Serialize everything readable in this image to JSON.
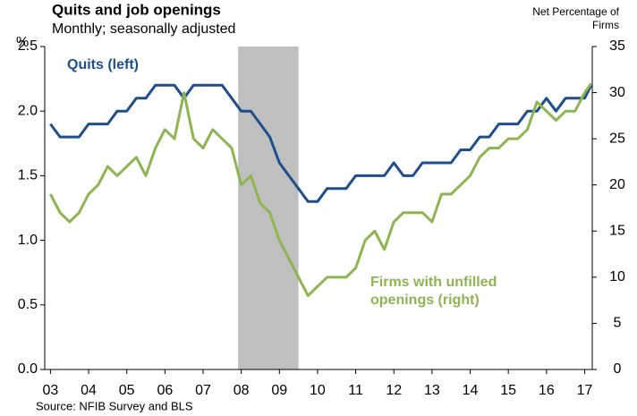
{
  "chart_data": {
    "type": "line",
    "title": "Quits and job openings",
    "subtitle": "Monthly; seasonally adjusted",
    "y_label": "%",
    "y2_label": "Net Percentage of Firms",
    "source": "Source: NFIB Survey and BLS",
    "recession_shading": [
      2007.92,
      2009.5
    ],
    "shading_color": "#bfbfbf",
    "x": [
      2003.0,
      2003.25,
      2003.5,
      2003.75,
      2004.0,
      2004.25,
      2004.5,
      2004.75,
      2005.0,
      2005.25,
      2005.5,
      2005.75,
      2006.0,
      2006.25,
      2006.5,
      2006.75,
      2007.0,
      2007.25,
      2007.5,
      2007.75,
      2008.0,
      2008.25,
      2008.5,
      2008.75,
      2009.0,
      2009.25,
      2009.5,
      2009.75,
      2010.0,
      2010.25,
      2010.5,
      2010.75,
      2011.0,
      2011.25,
      2011.5,
      2011.75,
      2012.0,
      2012.25,
      2012.5,
      2012.75,
      2013.0,
      2013.25,
      2013.5,
      2013.75,
      2014.0,
      2014.25,
      2014.5,
      2014.75,
      2015.0,
      2015.25,
      2015.5,
      2015.75,
      2016.0,
      2016.25,
      2016.5,
      2016.75,
      2017.0,
      2017.17
    ],
    "series": [
      {
        "name": "Quits (left)",
        "color": "#1f4e8c",
        "axis": "y",
        "values": [
          1.9,
          1.8,
          1.8,
          1.8,
          1.9,
          1.9,
          1.9,
          2.0,
          2.0,
          2.1,
          2.1,
          2.2,
          2.2,
          2.2,
          2.1,
          2.2,
          2.2,
          2.2,
          2.2,
          2.1,
          2.0,
          2.0,
          1.9,
          1.8,
          1.6,
          1.5,
          1.4,
          1.3,
          1.3,
          1.4,
          1.4,
          1.4,
          1.5,
          1.5,
          1.5,
          1.5,
          1.6,
          1.5,
          1.5,
          1.6,
          1.6,
          1.6,
          1.6,
          1.7,
          1.7,
          1.8,
          1.8,
          1.9,
          1.9,
          1.9,
          2.0,
          2.0,
          2.1,
          2.0,
          2.1,
          2.1,
          2.1,
          2.2
        ]
      },
      {
        "name": "Firms with unfilled openings (right)",
        "color": "#8db652",
        "axis": "y2",
        "values": [
          19,
          17,
          16,
          17,
          19,
          20,
          22,
          21,
          22,
          23,
          21,
          24,
          26,
          25,
          30,
          25,
          24,
          26,
          25,
          24,
          20,
          21,
          18,
          17,
          14,
          12,
          10,
          8,
          9,
          10,
          10,
          10,
          11,
          14,
          15,
          13,
          16,
          17,
          17,
          17,
          16,
          19,
          19,
          20,
          21,
          23,
          24,
          24,
          25,
          25,
          26,
          29,
          28,
          27,
          28,
          28,
          30,
          31
        ]
      }
    ],
    "xlim": [
      2002.85,
      2017.2
    ],
    "xticks": [
      {
        "value": 2003,
        "label": "03"
      },
      {
        "value": 2004,
        "label": "04"
      },
      {
        "value": 2005,
        "label": "05"
      },
      {
        "value": 2006,
        "label": "06"
      },
      {
        "value": 2007,
        "label": "07"
      },
      {
        "value": 2008,
        "label": "08"
      },
      {
        "value": 2009,
        "label": "09"
      },
      {
        "value": 2010,
        "label": "10"
      },
      {
        "value": 2011,
        "label": "11"
      },
      {
        "value": 2012,
        "label": "12"
      },
      {
        "value": 2013,
        "label": "13"
      },
      {
        "value": 2014,
        "label": "14"
      },
      {
        "value": 2015,
        "label": "15"
      },
      {
        "value": 2016,
        "label": "16"
      },
      {
        "value": 2017,
        "label": "17"
      }
    ],
    "ylim": [
      0,
      2.5
    ],
    "yticks": [
      {
        "value": 0,
        "label": "0.0"
      },
      {
        "value": 0.5,
        "label": "0.5"
      },
      {
        "value": 1,
        "label": "1.0"
      },
      {
        "value": 1.5,
        "label": "1.5"
      },
      {
        "value": 2,
        "label": "2.0"
      },
      2.5
    ],
    "y2lim": [
      0,
      35
    ],
    "y2ticks": [
      0,
      5,
      10,
      15,
      20,
      25,
      30,
      35
    ],
    "grid": false
  }
}
